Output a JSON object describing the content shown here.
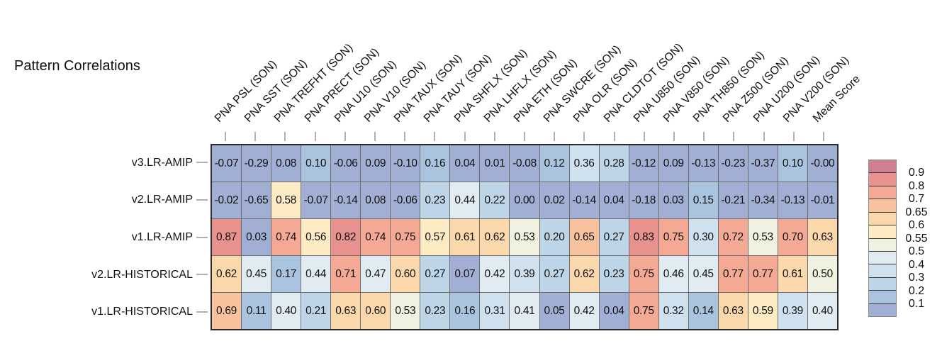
{
  "title": "Pattern Correlations",
  "chart_data": {
    "type": "heatmap",
    "title": "Pattern Correlations",
    "columns": [
      "PNA PSL (SON)",
      "PNA SST (SON)",
      "PNA TREFHT (SON)",
      "PNA PRECT (SON)",
      "PNA U10 (SON)",
      "PNA V10 (SON)",
      "PNA TAUX (SON)",
      "PNA TAUY (SON)",
      "PNA SHFLX (SON)",
      "PNA LHFLX (SON)",
      "PNA ETH (SON)",
      "PNA SWCRE (SON)",
      "PNA OLR (SON)",
      "PNA CLDTOT (SON)",
      "PNA U850 (SON)",
      "PNA V850 (SON)",
      "PNA TH850 (SON)",
      "PNA Z500 (SON)",
      "PNA U200 (SON)",
      "PNA V200 (SON)",
      "Mean Score"
    ],
    "rows": [
      "v3.LR-AMIP",
      "v2.LR-AMIP",
      "v1.LR-AMIP",
      "v2.LR-HISTORICAL",
      "v1.LR-HISTORICAL"
    ],
    "values": [
      [
        "-0.07",
        "-0.29",
        "0.08",
        "0.10",
        "-0.06",
        "0.09",
        "-0.10",
        "0.16",
        "0.04",
        "0.01",
        "-0.08",
        "0.12",
        "0.36",
        "0.28",
        "-0.12",
        "0.09",
        "-0.13",
        "-0.23",
        "-0.37",
        "0.10",
        "-0.00"
      ],
      [
        "-0.02",
        "-0.65",
        "0.58",
        "-0.07",
        "-0.14",
        "0.08",
        "-0.06",
        "0.23",
        "0.44",
        "0.22",
        "0.00",
        "0.02",
        "-0.14",
        "0.04",
        "-0.18",
        "0.03",
        "0.15",
        "-0.21",
        "-0.34",
        "-0.13",
        "-0.01"
      ],
      [
        "0.87",
        "0.03",
        "0.74",
        "0.56",
        "0.82",
        "0.74",
        "0.75",
        "0.57",
        "0.61",
        "0.62",
        "0.53",
        "0.20",
        "0.65",
        "0.27",
        "0.83",
        "0.75",
        "0.30",
        "0.72",
        "0.53",
        "0.70",
        "0.63"
      ],
      [
        "0.62",
        "0.45",
        "0.17",
        "0.44",
        "0.71",
        "0.47",
        "0.60",
        "0.27",
        "0.07",
        "0.42",
        "0.39",
        "0.27",
        "0.62",
        "0.23",
        "0.75",
        "0.46",
        "0.45",
        "0.77",
        "0.77",
        "0.61",
        "0.50"
      ],
      [
        "0.69",
        "0.11",
        "0.40",
        "0.21",
        "0.63",
        "0.60",
        "0.53",
        "0.23",
        "0.16",
        "0.31",
        "0.41",
        "0.05",
        "0.42",
        "0.04",
        "0.75",
        "0.32",
        "0.14",
        "0.63",
        "0.59",
        "0.39",
        "0.40"
      ]
    ],
    "colorbar": {
      "tick_labels": [
        "0.9",
        "0.8",
        "0.7",
        "0.65",
        "0.6",
        "0.55",
        "0.5",
        "0.4",
        "0.3",
        "0.2",
        "0.1"
      ],
      "thresholds_ascending": [
        0.1,
        0.2,
        0.3,
        0.4,
        0.5,
        0.55,
        0.6,
        0.65,
        0.7,
        0.8,
        0.9
      ],
      "colors_low_to_high": [
        "#a0afd3",
        "#aac4df",
        "#bed5e7",
        "#cfe1ee",
        "#e0ebf2",
        "#f1f1e1",
        "#fcebc3",
        "#fad8ab",
        "#f8c29e",
        "#f3a993",
        "#e89290",
        "#cf7f90"
      ]
    },
    "legend_position": "right",
    "grid": true
  }
}
